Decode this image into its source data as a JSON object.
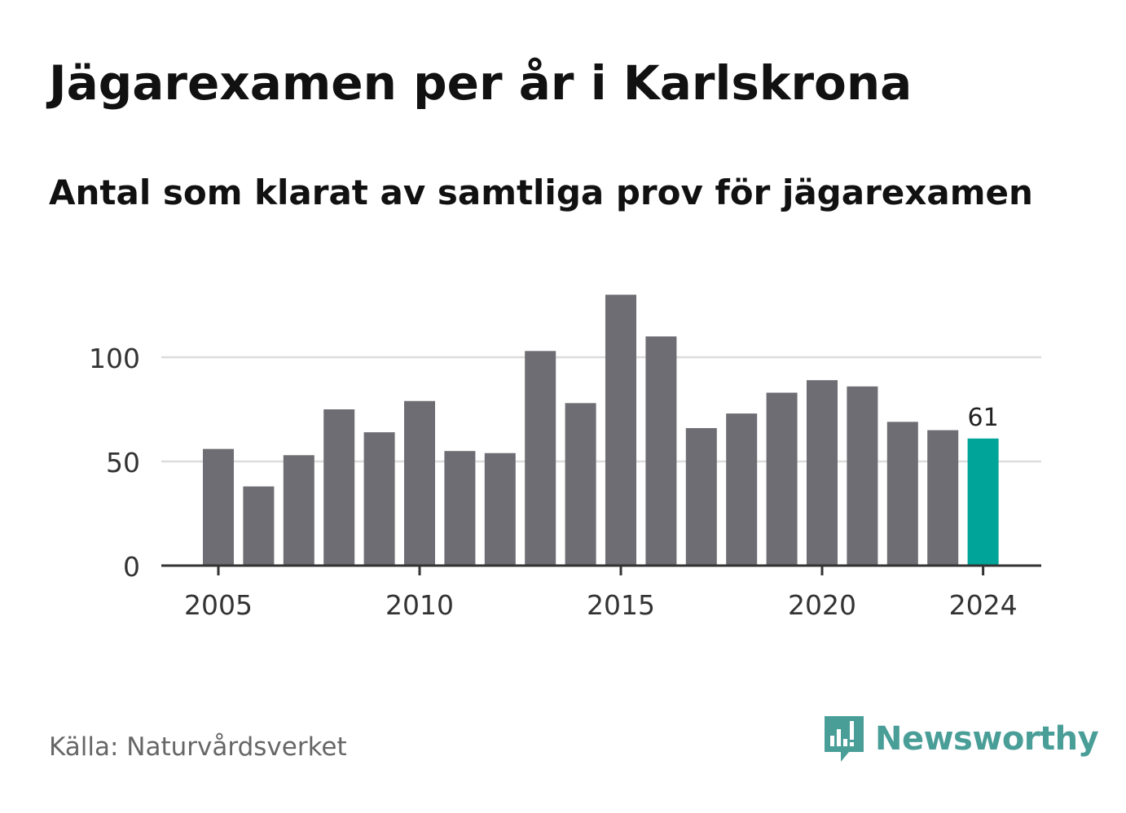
{
  "header": {
    "title": "Jägarexamen per år i Karlskrona",
    "subtitle": "Antal som klarat av samtliga prov för jägarexamen"
  },
  "footer": {
    "source": "Källa: Naturvårdsverket",
    "brand": "Newsworthy"
  },
  "colors": {
    "bar": "#6e6d73",
    "highlight": "#00a499",
    "grid": "#dddddd",
    "axis": "#333333",
    "brand": "#4a9e98"
  },
  "icons": {
    "brand_icon": "bar-chart-speech-bubble-icon"
  },
  "chart_data": {
    "type": "bar",
    "categories": [
      "2005",
      "2006",
      "2007",
      "2008",
      "2009",
      "2010",
      "2011",
      "2012",
      "2013",
      "2014",
      "2015",
      "2016",
      "2017",
      "2018",
      "2019",
      "2020",
      "2021",
      "2022",
      "2023",
      "2024"
    ],
    "values": [
      56,
      38,
      53,
      75,
      64,
      79,
      55,
      54,
      103,
      78,
      130,
      110,
      66,
      73,
      83,
      89,
      86,
      69,
      65,
      61
    ],
    "highlight_category": "2024",
    "data_labels": [
      {
        "category": "2024",
        "label": "61"
      }
    ],
    "x_tick_labels": [
      "2005",
      "2010",
      "2015",
      "2020",
      "2024"
    ],
    "y_ticks": [
      0,
      50,
      100
    ],
    "ylim": [
      0,
      130
    ],
    "grid": true
  }
}
